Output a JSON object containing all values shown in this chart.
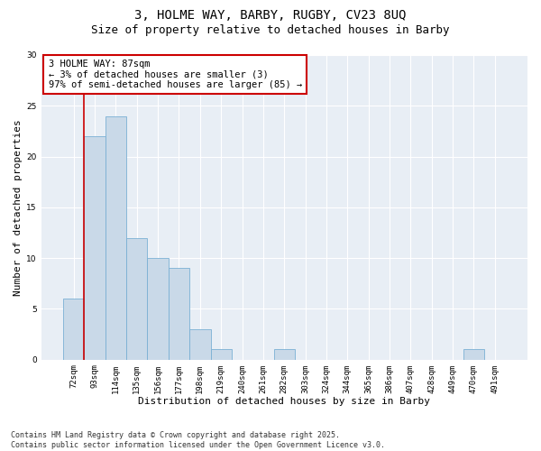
{
  "title_line1": "3, HOLME WAY, BARBY, RUGBY, CV23 8UQ",
  "title_line2": "Size of property relative to detached houses in Barby",
  "xlabel": "Distribution of detached houses by size in Barby",
  "ylabel": "Number of detached properties",
  "categories": [
    "72sqm",
    "93sqm",
    "114sqm",
    "135sqm",
    "156sqm",
    "177sqm",
    "198sqm",
    "219sqm",
    "240sqm",
    "261sqm",
    "282sqm",
    "303sqm",
    "324sqm",
    "344sqm",
    "365sqm",
    "386sqm",
    "407sqm",
    "428sqm",
    "449sqm",
    "470sqm",
    "491sqm"
  ],
  "values": [
    6,
    22,
    24,
    12,
    10,
    9,
    3,
    1,
    0,
    0,
    1,
    0,
    0,
    0,
    0,
    0,
    0,
    0,
    0,
    1,
    0
  ],
  "bar_color": "#c9d9e8",
  "bar_edge_color": "#7ab0d4",
  "vline_color": "#cc0000",
  "annotation_text": "3 HOLME WAY: 87sqm\n← 3% of detached houses are smaller (3)\n97% of semi-detached houses are larger (85) →",
  "annotation_box_color": "#cc0000",
  "annotation_bg": "#ffffff",
  "ylim": [
    0,
    30
  ],
  "yticks": [
    0,
    5,
    10,
    15,
    20,
    25,
    30
  ],
  "background_color": "#e8eef5",
  "grid_color": "#ffffff",
  "footer": "Contains HM Land Registry data © Crown copyright and database right 2025.\nContains public sector information licensed under the Open Government Licence v3.0.",
  "title_fontsize": 10,
  "subtitle_fontsize": 9,
  "axis_label_fontsize": 8,
  "tick_fontsize": 6.5,
  "annotation_fontsize": 7.5,
  "footer_fontsize": 6
}
